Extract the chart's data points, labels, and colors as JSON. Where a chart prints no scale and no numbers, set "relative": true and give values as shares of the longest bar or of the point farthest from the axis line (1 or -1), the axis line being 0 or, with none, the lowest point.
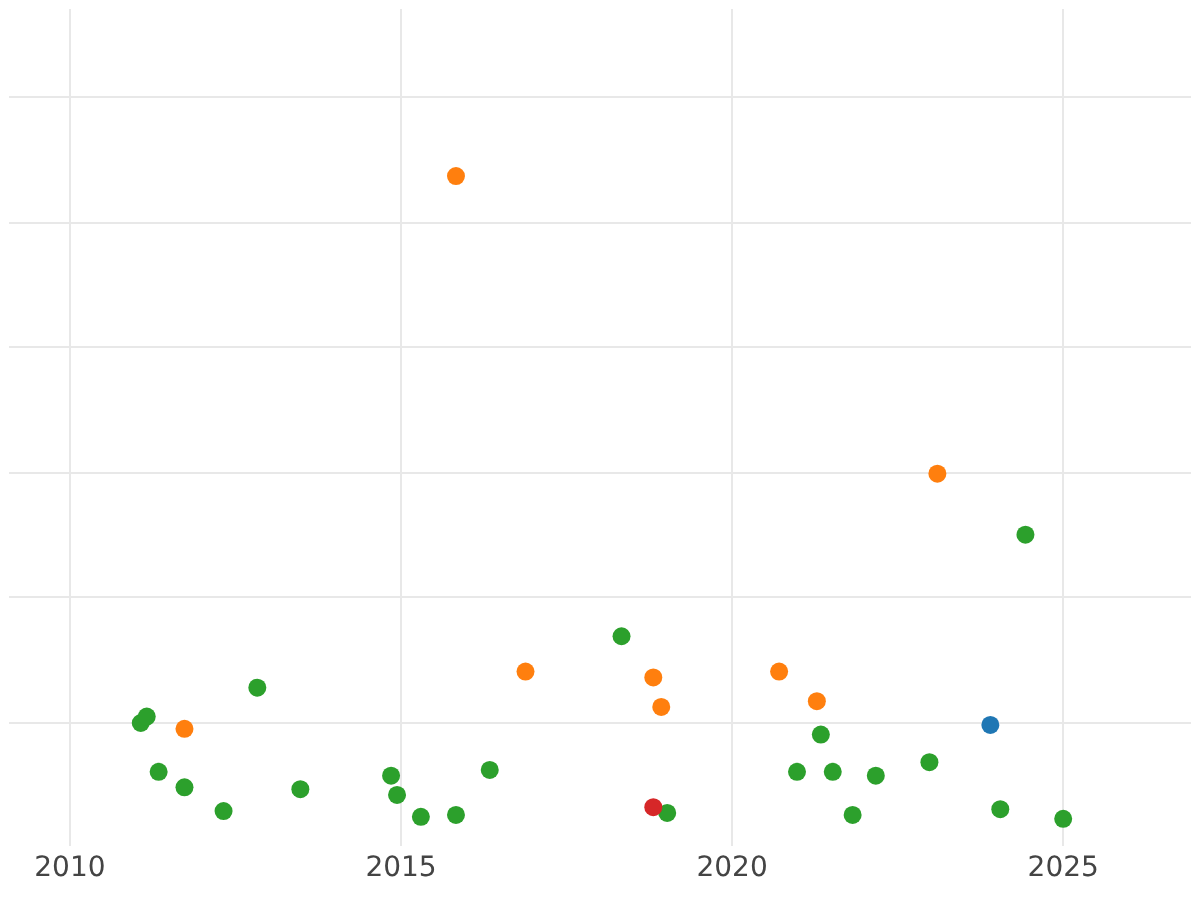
{
  "chart_data": {
    "type": "scatter",
    "relative": true,
    "grid": true,
    "marker": "circle",
    "xlim": [
      2009.08,
      2026.93
    ],
    "xticks": [
      2010,
      2015,
      2020,
      2025
    ],
    "series": [
      {
        "color": "#ff7f0e",
        "x": [
          2015.83,
          2011.73,
          2016.88,
          2018.81,
          2018.93,
          2020.71,
          2021.28,
          2023.1
        ],
        "values": [
          1.0,
          0.14,
          0.229,
          0.22,
          0.174,
          0.229,
          0.183,
          0.537
        ]
      },
      {
        "color": "#1f77b4",
        "x": [
          2023.9
        ],
        "values": [
          0.146
        ]
      },
      {
        "color": "#d62728",
        "x": [
          2018.81
        ],
        "values": [
          0.018
        ]
      },
      {
        "color": "#2ca02c",
        "x": [
          2011.07,
          2011.16,
          2011.34,
          2011.73,
          2012.32,
          2012.83,
          2013.48,
          2014.85,
          2014.94,
          2015.3,
          2015.83,
          2016.34,
          2018.33,
          2019.02,
          2020.98,
          2021.34,
          2021.52,
          2021.82,
          2022.17,
          2022.98,
          2024.05,
          2024.43,
          2025.0
        ],
        "values": [
          0.149,
          0.159,
          0.073,
          0.049,
          0.012,
          0.204,
          0.046,
          0.067,
          0.037,
          0.003,
          0.006,
          0.076,
          0.284,
          0.009,
          0.073,
          0.131,
          0.073,
          0.006,
          0.067,
          0.088,
          0.015,
          0.442,
          0.0
        ]
      }
    ]
  }
}
